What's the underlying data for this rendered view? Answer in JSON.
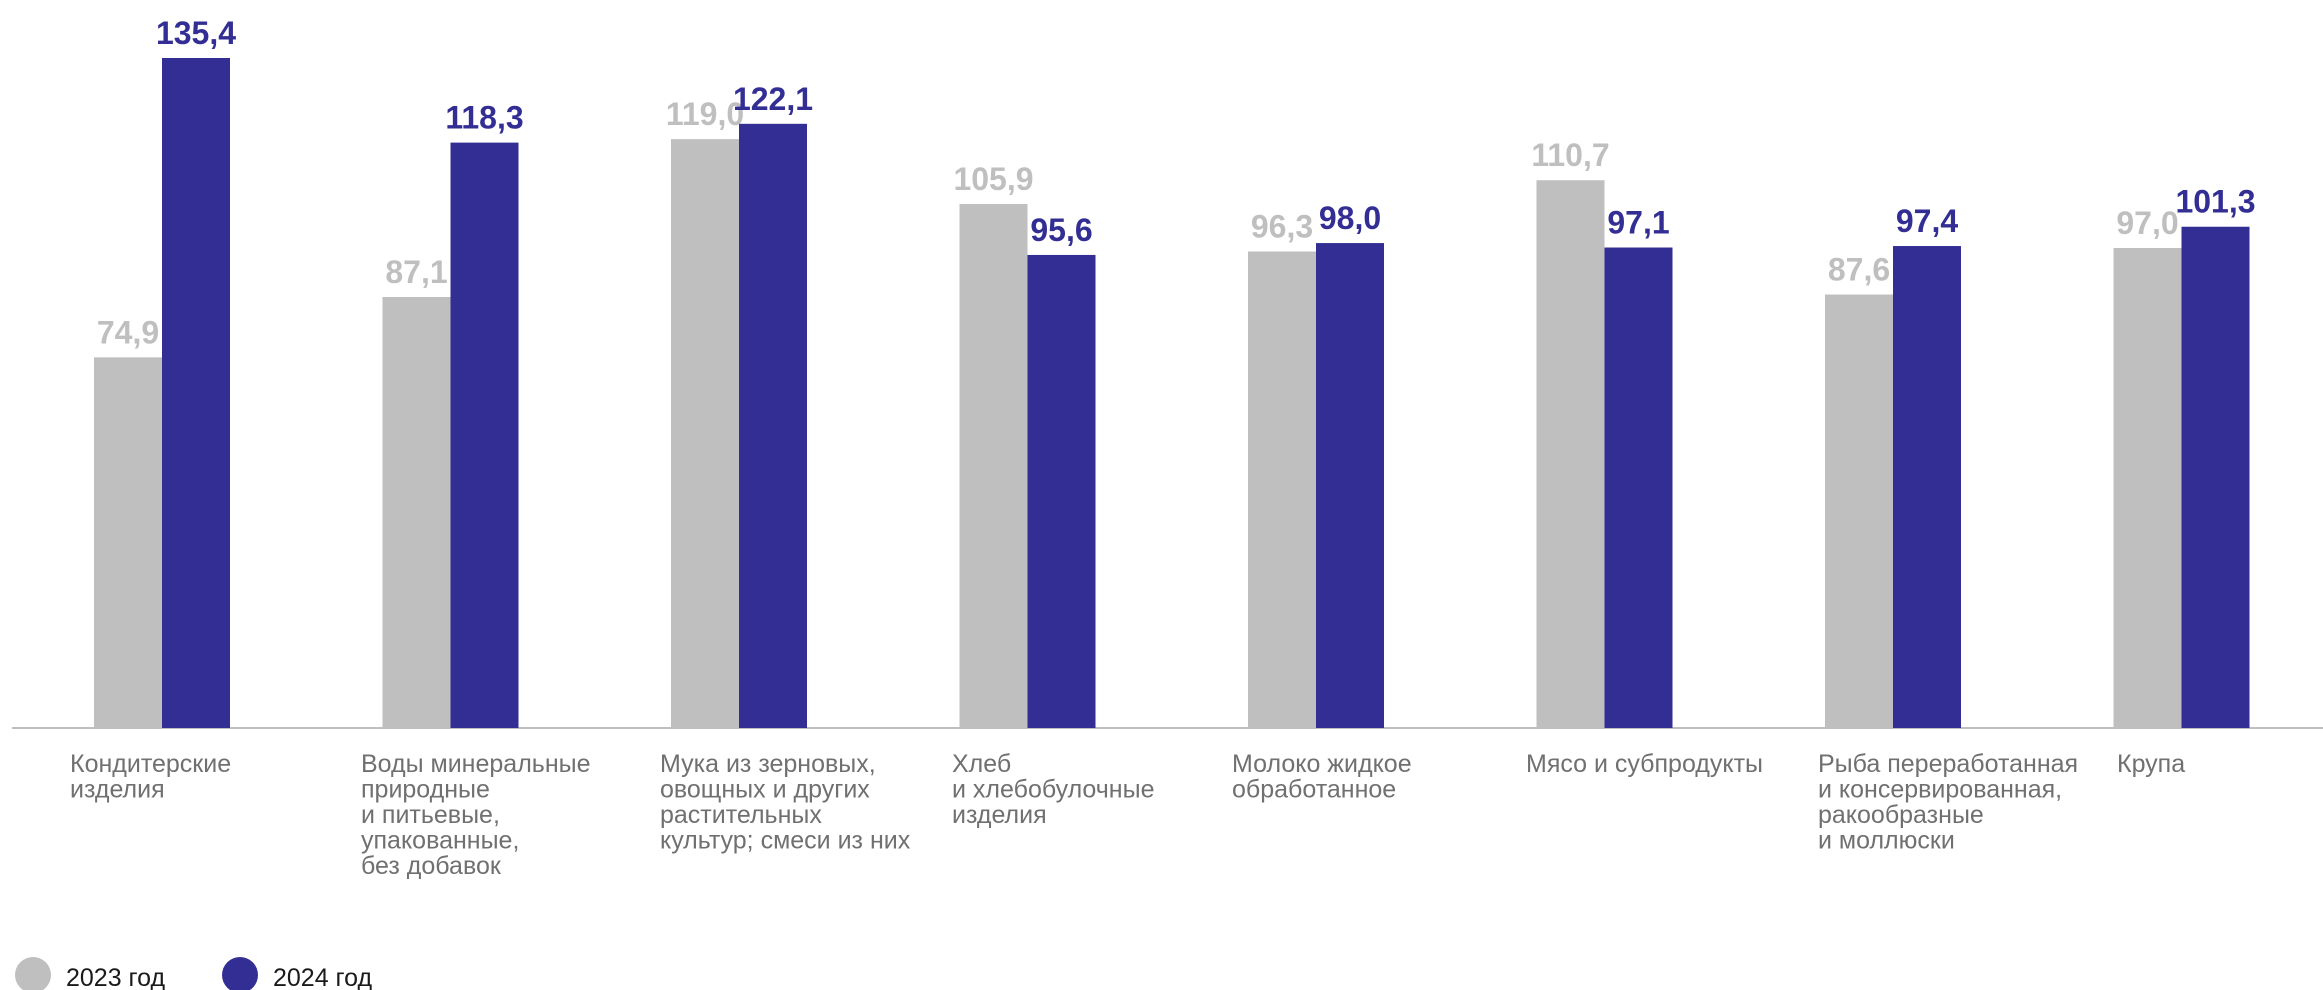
{
  "chart_data": {
    "type": "bar",
    "categories": [
      [
        "Кондитерские",
        "изделия"
      ],
      [
        "Воды минеральные",
        "природные",
        "и питьевые,",
        "упакованные,",
        "без добавок"
      ],
      [
        "Мука из зерновых,",
        "овощных и других",
        "растительных",
        "культур; смеси из них"
      ],
      [
        "Хлеб",
        "и хлебобулочные",
        "изделия"
      ],
      [
        "Молоко жидкое",
        "обработанное"
      ],
      [
        "Мясо и субпродукты"
      ],
      [
        "Рыба переработанная",
        "и консервированная,",
        "ракообразные",
        "и моллюски"
      ],
      [
        "Крупа"
      ]
    ],
    "series": [
      {
        "name": "2023 год",
        "color": "#bfbfbf",
        "values": [
          74.9,
          87.1,
          119.0,
          105.9,
          96.3,
          110.7,
          87.6,
          97.0
        ],
        "labels": [
          "74,9",
          "87,1",
          "119,0",
          "105,9",
          "96,3",
          "110,7",
          "87,6",
          "97,0"
        ]
      },
      {
        "name": "2024 год",
        "color": "#332e94",
        "values": [
          135.4,
          118.3,
          122.1,
          95.6,
          98.0,
          97.1,
          97.4,
          101.3
        ],
        "labels": [
          "135,4",
          "118,3",
          "122,1",
          "95,6",
          "98,0",
          "97,1",
          "97,4",
          "101,3"
        ]
      }
    ],
    "ylim": [
      0,
      135.4
    ],
    "grid": false,
    "legend_position": "bottom-left"
  }
}
